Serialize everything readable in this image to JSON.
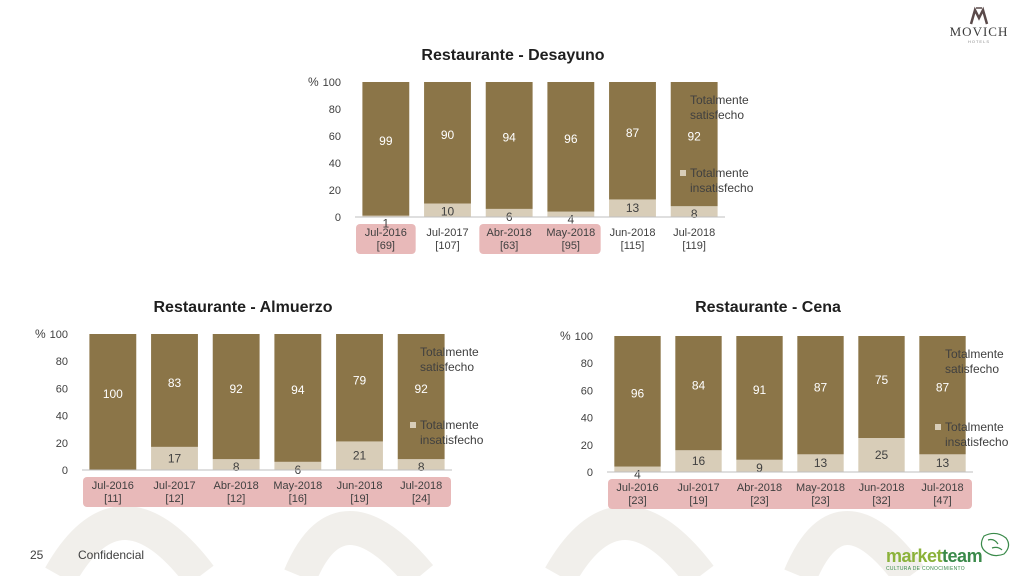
{
  "brand": {
    "name": "MOVICH",
    "sub": "HOTELS"
  },
  "footer": {
    "page_number": "25",
    "label": "Confidencial"
  },
  "partner": {
    "name_a": "market",
    "name_b": "team",
    "tagline": "CULTURA DE CONOCIMIENTO"
  },
  "colors": {
    "satisfied": "#8b7548",
    "unsatisfied": "#d8cdb8",
    "highlight": "#e8b9b9",
    "text": "#404040"
  },
  "chart_data": [
    {
      "type": "bar",
      "stacked": true,
      "title": "Restaurante - Desayuno",
      "ylabel": "%",
      "ylim": [
        0,
        100
      ],
      "yticks": [
        "0",
        "20",
        "40",
        "60",
        "80",
        "100"
      ],
      "categories": [
        "Jul-2016",
        "Jul-2017",
        "Abr-2018",
        "May-2018",
        "Jun-2018",
        "Jul-2018"
      ],
      "sample_sizes": [
        "[69]",
        "[107]",
        "[63]",
        "[95]",
        "[115]",
        "[119]"
      ],
      "highlighted_categories": [
        0,
        2,
        3
      ],
      "series": [
        {
          "name": "Totalmente insatisfecho",
          "values": [
            1,
            10,
            6,
            4,
            13,
            8
          ]
        },
        {
          "name": "Totalmente satisfecho",
          "values": [
            99,
            90,
            94,
            96,
            87,
            92
          ]
        }
      ],
      "legend": {
        "position": "right",
        "items": [
          "Totalmente satisfecho",
          "Totalmente insatisfecho"
        ]
      },
      "grid": false
    },
    {
      "type": "bar",
      "stacked": true,
      "title": "Restaurante - Almuerzo",
      "ylabel": "%",
      "ylim": [
        0,
        100
      ],
      "yticks": [
        "0",
        "20",
        "40",
        "60",
        "80",
        "100"
      ],
      "categories": [
        "Jul-2016",
        "Jul-2017",
        "Abr-2018",
        "May-2018",
        "Jun-2018",
        "Jul-2018"
      ],
      "sample_sizes": [
        "[11]",
        "[12]",
        "[12]",
        "[16]",
        "[19]",
        "[24]"
      ],
      "highlighted_categories": [
        0,
        1,
        2,
        3,
        4,
        5
      ],
      "series": [
        {
          "name": "Totalmente insatisfecho",
          "values": [
            0,
            17,
            8,
            6,
            21,
            8
          ]
        },
        {
          "name": "Totalmente satisfecho",
          "values": [
            100,
            83,
            92,
            94,
            79,
            92
          ]
        }
      ],
      "legend": {
        "position": "right",
        "items": [
          "Totalmente satisfecho",
          "Totalmente insatisfecho"
        ]
      },
      "grid": false
    },
    {
      "type": "bar",
      "stacked": true,
      "title": "Restaurante - Cena",
      "ylabel": "%",
      "ylim": [
        0,
        100
      ],
      "yticks": [
        "0",
        "20",
        "40",
        "60",
        "80",
        "100"
      ],
      "categories": [
        "Jul-2016",
        "Jul-2017",
        "Abr-2018",
        "May-2018",
        "Jun-2018",
        "Jul-2018"
      ],
      "sample_sizes": [
        "[23]",
        "[19]",
        "[23]",
        "[23]",
        "[32]",
        "[47]"
      ],
      "highlighted_categories": [
        0,
        1,
        2,
        3,
        4,
        5
      ],
      "series": [
        {
          "name": "Totalmente insatisfecho",
          "values": [
            4,
            16,
            9,
            13,
            25,
            13
          ]
        },
        {
          "name": "Totalmente satisfecho",
          "values": [
            96,
            84,
            91,
            87,
            75,
            87
          ]
        }
      ],
      "legend": {
        "position": "right",
        "items": [
          "Totalmente satisfecho",
          "Totalmente insatisfecho"
        ]
      },
      "grid": false
    }
  ]
}
